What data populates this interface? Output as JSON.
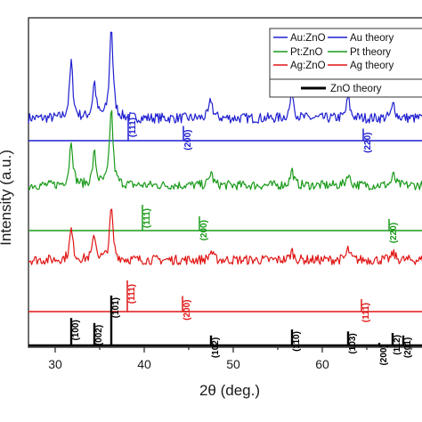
{
  "chart_data": {
    "type": "line",
    "title": "",
    "xlabel": "2θ (deg.)",
    "ylabel": "Intensity (a.u.)",
    "xlim": [
      27,
      73
    ],
    "xticks": [
      30,
      40,
      50,
      60
    ],
    "grid": false,
    "legend_position": "top-right",
    "colors": {
      "Au": "#1f1fd0",
      "Pt": "#199a19",
      "Ag": "#e01515",
      "ZnO": "#000000"
    },
    "legend": [
      {
        "label": "Au:ZnO",
        "color": "#1f1fd0",
        "kind": "measured"
      },
      {
        "label": "Au theory",
        "color": "#1f1fd0",
        "kind": "theory"
      },
      {
        "label": "Pt:ZnO",
        "color": "#199a19",
        "kind": "measured"
      },
      {
        "label": "Pt theory",
        "color": "#199a19",
        "kind": "theory"
      },
      {
        "label": "Ag:ZnO",
        "color": "#e01515",
        "kind": "measured"
      },
      {
        "label": "Ag theory",
        "color": "#e01515",
        "kind": "theory"
      },
      {
        "label": "ZnO theory",
        "color": "#000000",
        "kind": "theory-bold"
      }
    ],
    "series": [
      {
        "name": "Au:ZnO",
        "color": "#1f1fd0",
        "baseline": 0.2,
        "peaks": [
          [
            31.8,
            3.0
          ],
          [
            34.4,
            1.9
          ],
          [
            36.3,
            5.0
          ],
          [
            47.5,
            1.0
          ],
          [
            56.6,
            1.5
          ],
          [
            62.9,
            1.1
          ],
          [
            68.0,
            0.8
          ]
        ]
      },
      {
        "name": "Pt:ZnO",
        "color": "#199a19",
        "baseline": 0.2,
        "peaks": [
          [
            31.8,
            2.7
          ],
          [
            34.4,
            1.9
          ],
          [
            36.3,
            4.6
          ],
          [
            47.5,
            0.8
          ],
          [
            56.6,
            0.9
          ],
          [
            62.9,
            0.7
          ],
          [
            68.0,
            0.6
          ]
        ]
      },
      {
        "name": "Ag:ZnO",
        "color": "#e01515",
        "baseline": 0.2,
        "peaks": [
          [
            31.8,
            1.7
          ],
          [
            34.4,
            1.4
          ],
          [
            36.3,
            2.9
          ],
          [
            47.5,
            0.5
          ],
          [
            56.6,
            0.5
          ],
          [
            62.9,
            0.6
          ],
          [
            68.0,
            0.4
          ]
        ]
      }
    ],
    "references": [
      {
        "name": "Au theory",
        "color": "#1f1fd0",
        "lines": [
          {
            "x": 38.2,
            "label": "(111)",
            "height": 1.0
          },
          {
            "x": 44.4,
            "label": "(200)",
            "height": 0.55
          },
          {
            "x": 64.6,
            "label": "(220)",
            "height": 0.45
          }
        ]
      },
      {
        "name": "Pt theory",
        "color": "#199a19",
        "lines": [
          {
            "x": 39.8,
            "label": "(111)",
            "height": 1.0
          },
          {
            "x": 46.2,
            "label": "(200)",
            "height": 0.55
          },
          {
            "x": 67.5,
            "label": "(220)",
            "height": 0.45
          }
        ]
      },
      {
        "name": "Ag theory",
        "color": "#e01515",
        "lines": [
          {
            "x": 38.1,
            "label": "(111)",
            "height": 1.0
          },
          {
            "x": 44.3,
            "label": "(200)",
            "height": 0.5
          },
          {
            "x": 64.4,
            "label": "(111)",
            "height": 0.4
          }
        ]
      },
      {
        "name": "ZnO theory",
        "color": "#000000",
        "lines": [
          {
            "x": 31.8,
            "label": "(100)",
            "height": 0.55
          },
          {
            "x": 34.4,
            "label": "(002)",
            "height": 0.45
          },
          {
            "x": 36.3,
            "label": "(101)",
            "height": 1.0
          },
          {
            "x": 47.5,
            "label": "(102)",
            "height": 0.2
          },
          {
            "x": 56.6,
            "label": "(110)",
            "height": 0.32
          },
          {
            "x": 62.9,
            "label": "(103)",
            "height": 0.28
          },
          {
            "x": 66.4,
            "label": "(200)",
            "height": 0.05
          },
          {
            "x": 67.9,
            "label": "(112)",
            "height": 0.25
          },
          {
            "x": 69.1,
            "label": "(201)",
            "height": 0.2
          }
        ]
      }
    ]
  }
}
